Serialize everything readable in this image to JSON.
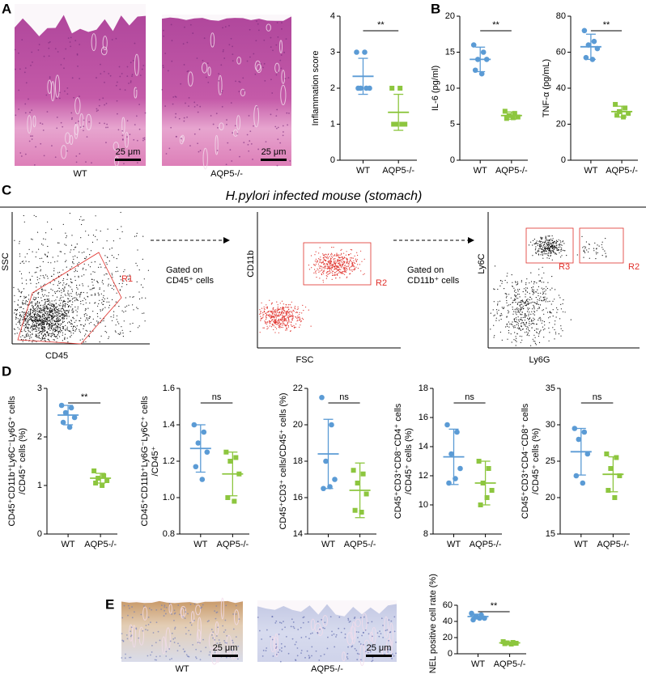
{
  "figure": {
    "panels": [
      "A",
      "B",
      "C",
      "D",
      "E"
    ],
    "c_title": "H.pylori infected mouse (stomach)",
    "histology": [
      {
        "caption": "WT",
        "scale": "25 μm"
      },
      {
        "caption": "AQP5-/-",
        "scale": "25 μm"
      },
      {
        "caption": "WT",
        "scale": "25 μm"
      },
      {
        "caption": "AQP5-/-",
        "scale": "25 μm"
      }
    ],
    "flow": [
      {
        "x_label": "CD45",
        "y_label": "SSC",
        "gates": [
          "R1"
        ]
      },
      {
        "x_label": "FSC",
        "y_label": "CD11b",
        "gates": [
          "R2"
        ]
      },
      {
        "x_label": "Ly6G",
        "y_label": "Ly6C",
        "gates": [
          "R3",
          "R2"
        ]
      }
    ],
    "gating_notes": [
      [
        "Gated on",
        "CD45⁺ cells"
      ],
      [
        "Gated on",
        "CD11b⁺ cells"
      ]
    ]
  },
  "chart_data": [
    {
      "type": "dot",
      "ylabel": [
        "Inflammation score"
      ],
      "categories": [
        "WT",
        "AQP5-/-"
      ],
      "ylim": [
        0,
        4
      ],
      "yticks": [
        0,
        1,
        2,
        3,
        4
      ],
      "sig": "**",
      "groups": [
        {
          "color": "#5b9bd5",
          "values": [
            3,
            2,
            2,
            2,
            2,
            3
          ],
          "mean": 2.33,
          "sd": 0.5
        },
        {
          "color": "#8dc63f",
          "values": [
            2,
            1,
            1,
            1,
            1,
            2
          ],
          "mean": 1.33,
          "sd": 0.5
        }
      ]
    },
    {
      "type": "dot",
      "ylabel": [
        "IL-6 (pg/ml)"
      ],
      "categories": [
        "WT",
        "AQP5-/-"
      ],
      "ylim": [
        0,
        20
      ],
      "yticks": [
        0,
        5,
        10,
        15,
        20
      ],
      "sig": "**",
      "groups": [
        {
          "color": "#5b9bd5",
          "values": [
            16,
            15,
            14,
            14,
            12.5,
            12
          ],
          "mean": 14,
          "sd": 1.7
        },
        {
          "color": "#8dc63f",
          "values": [
            6.8,
            6.5,
            6.2,
            6.0,
            5.8,
            5.9
          ],
          "mean": 6.2,
          "sd": 0.5
        }
      ]
    },
    {
      "type": "dot",
      "ylabel": [
        "TNF-α (pg/mL)"
      ],
      "categories": [
        "WT",
        "AQP5-/-"
      ],
      "ylim": [
        0,
        80
      ],
      "yticks": [
        0,
        20,
        40,
        60,
        80
      ],
      "sig": "**",
      "groups": [
        {
          "color": "#5b9bd5",
          "values": [
            72,
            66,
            64,
            62,
            57,
            56
          ],
          "mean": 63,
          "sd": 7
        },
        {
          "color": "#8dc63f",
          "values": [
            31,
            29,
            27,
            26,
            25,
            24
          ],
          "mean": 27,
          "sd": 3
        }
      ]
    },
    {
      "type": "dot",
      "ylabel": [
        "CD45⁺CD11b⁺Ly6C⁻Ly6G⁺ cells",
        "/CD45⁺ cells (%)"
      ],
      "categories": [
        "WT",
        "AQP5-/-"
      ],
      "ylim": [
        0,
        3
      ],
      "yticks": [
        0,
        1,
        2,
        3
      ],
      "sig": "**",
      "groups": [
        {
          "color": "#5b9bd5",
          "values": [
            2.65,
            2.6,
            2.5,
            2.4,
            2.3,
            2.2
          ],
          "mean": 2.45,
          "sd": 0.2
        },
        {
          "color": "#8dc63f",
          "values": [
            1.3,
            1.2,
            1.15,
            1.1,
            1.05,
            1.0
          ],
          "mean": 1.15,
          "sd": 0.1
        }
      ]
    },
    {
      "type": "dot",
      "ylabel": [
        "CD45⁺CD11b⁺Ly6G⁻Ly6C⁺ cells",
        "/CD45⁺"
      ],
      "categories": [
        "WT",
        "AQP5-/-"
      ],
      "ylim": [
        0.8,
        1.6
      ],
      "yticks": [
        0.8,
        {
          "value": 1,
          "label": "1.0"
        },
        1.2,
        1.4,
        1.6
      ],
      "sig": "ns",
      "groups": [
        {
          "color": "#5b9bd5",
          "values": [
            1.4,
            1.36,
            1.3,
            1.25,
            1.17,
            1.1
          ],
          "mean": 1.27,
          "sd": 0.13
        },
        {
          "color": "#8dc63f",
          "values": [
            1.25,
            1.22,
            1.2,
            1.13,
            1.0,
            0.98
          ],
          "mean": 1.13,
          "sd": 0.12
        }
      ]
    },
    {
      "type": "dot",
      "ylabel": [
        "CD45⁺CD3⁺ cells/CD45⁺ cells (%)"
      ],
      "categories": [
        "WT",
        "AQP5-/-"
      ],
      "ylim": [
        14,
        22
      ],
      "yticks": [
        14,
        16,
        18,
        20,
        22
      ],
      "sig": "ns",
      "groups": [
        {
          "color": "#5b9bd5",
          "values": [
            21.5,
            20,
            18,
            17,
            16.5,
            16.6
          ],
          "mean": 18.4,
          "sd": 1.9
        },
        {
          "color": "#8dc63f",
          "values": [
            17.5,
            17.3,
            16.8,
            16.2,
            15.3,
            15.2
          ],
          "mean": 16.4,
          "sd": 1.5
        }
      ]
    },
    {
      "type": "dot",
      "ylabel": [
        "CD45⁺CD3⁺CD8⁻CD4⁺ cells",
        "/CD45⁺ cells (%)"
      ],
      "categories": [
        "WT",
        "AQP5-/-"
      ],
      "ylim": [
        8,
        18
      ],
      "yticks": [
        8,
        10,
        12,
        14,
        16,
        18
      ],
      "sig": "ns",
      "groups": [
        {
          "color": "#5b9bd5",
          "values": [
            15.5,
            15,
            13.5,
            12.5,
            11.5,
            11.8
          ],
          "mean": 13.3,
          "sd": 1.9
        },
        {
          "color": "#8dc63f",
          "values": [
            13,
            12.5,
            11.5,
            11,
            10,
            10.5
          ],
          "mean": 11.5,
          "sd": 1.5
        }
      ]
    },
    {
      "type": "dot",
      "ylabel": [
        "CD45⁺CD3⁺CD4⁻CD8⁺ cells",
        "/CD45⁺ cells (%)"
      ],
      "categories": [
        "WT",
        "AQP5-/-"
      ],
      "ylim": [
        15,
        35
      ],
      "yticks": [
        15,
        20,
        25,
        30,
        35
      ],
      "sig": "ns",
      "groups": [
        {
          "color": "#5b9bd5",
          "values": [
            29.5,
            29,
            28,
            26,
            23,
            22
          ],
          "mean": 26.3,
          "sd": 3.2
        },
        {
          "color": "#8dc63f",
          "values": [
            26,
            25.5,
            24,
            23,
            21,
            20
          ],
          "mean": 23.2,
          "sd": 2.4
        }
      ]
    },
    {
      "type": "dot",
      "ylabel": [
        "TUNEL positive cell rate (%)"
      ],
      "categories": [
        "WT",
        "AQP5-/-"
      ],
      "ylim": [
        0,
        60
      ],
      "yticks": [
        0,
        20,
        40,
        60
      ],
      "sig": "**",
      "groups": [
        {
          "color": "#5b9bd5",
          "values": [
            50,
            48,
            46,
            44,
            42,
            44
          ],
          "mean": 46,
          "sd": 3
        },
        {
          "color": "#8dc63f",
          "values": [
            15,
            14,
            13.5,
            13,
            12.5,
            12
          ],
          "mean": 13.5,
          "sd": 1
        }
      ]
    }
  ]
}
